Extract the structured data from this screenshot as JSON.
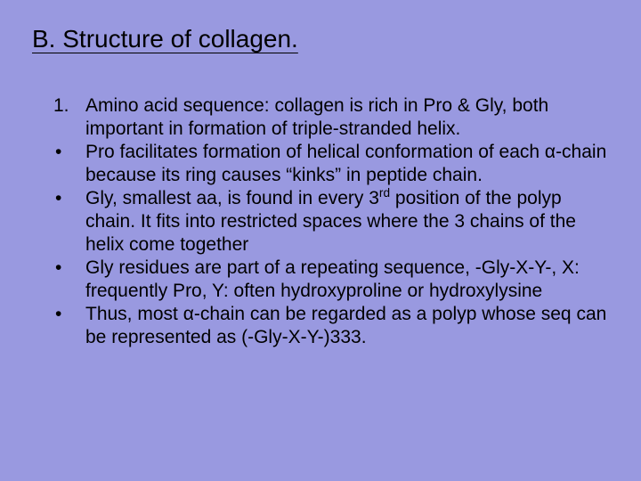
{
  "title": "B. Structure of collagen.",
  "items": [
    {
      "marker": "1.",
      "type": "number",
      "text": "Amino acid sequence: collagen is rich in Pro & Gly, both important in formation of triple-stranded helix."
    },
    {
      "marker": "•",
      "type": "bullet",
      "text": "Pro facilitates formation of helical conformation of each α-chain because its ring causes “kinks” in peptide chain."
    },
    {
      "marker": "•",
      "type": "bullet",
      "text": "Gly, smallest aa, is found in every 3rd position of the polyp chain. It fits into restricted spaces where the 3 chains of the helix come together",
      "sup": "rd",
      "pre": "Gly, smallest aa, is found in every 3",
      "post": " position of the polyp chain. It fits into restricted spaces where the 3 chains of the helix come together"
    },
    {
      "marker": "•",
      "type": "bullet",
      "text": "Gly residues are part of a repeating sequence, -Gly-X-Y-, X: frequently Pro, Y: often hydroxyproline or hydroxylysine"
    },
    {
      "marker": "•",
      "type": "bullet",
      "text": "Thus, most α-chain can be regarded as a polyp whose seq can be represented as (-Gly-X-Y-)333."
    }
  ],
  "colors": {
    "background": "#9999e0",
    "text": "#000000"
  },
  "typography": {
    "title_fontsize": 28,
    "body_fontsize": 21,
    "font_family": "Arial"
  }
}
